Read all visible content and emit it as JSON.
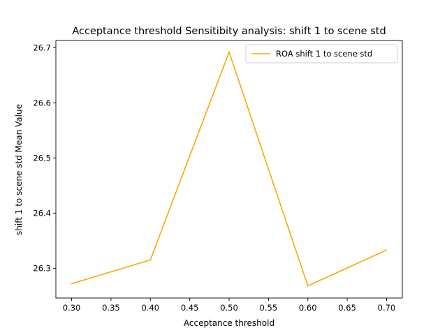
{
  "chart_data": {
    "type": "line",
    "title": "Acceptance threshold Sensitibity analysis: shift 1 to scene std",
    "xlabel": "Acceptance threshold",
    "ylabel": "shift 1 to scene std Mean Value",
    "xlim": [
      0.28,
      0.72
    ],
    "ylim": [
      26.246,
      26.713
    ],
    "x_ticks": [
      "0.30",
      "0.35",
      "0.40",
      "0.45",
      "0.50",
      "0.55",
      "0.60",
      "0.65",
      "0.70"
    ],
    "y_ticks": [
      "26.3",
      "26.4",
      "26.5",
      "26.6",
      "26.7"
    ],
    "grid": false,
    "legend_position": "top-right",
    "series": [
      {
        "name": "ROA shift 1 to scene std",
        "color": "#ffa500",
        "x": [
          0.3,
          0.4,
          0.5,
          0.6,
          0.7
        ],
        "y": [
          26.272,
          26.315,
          26.692,
          26.268,
          26.333
        ]
      }
    ]
  }
}
